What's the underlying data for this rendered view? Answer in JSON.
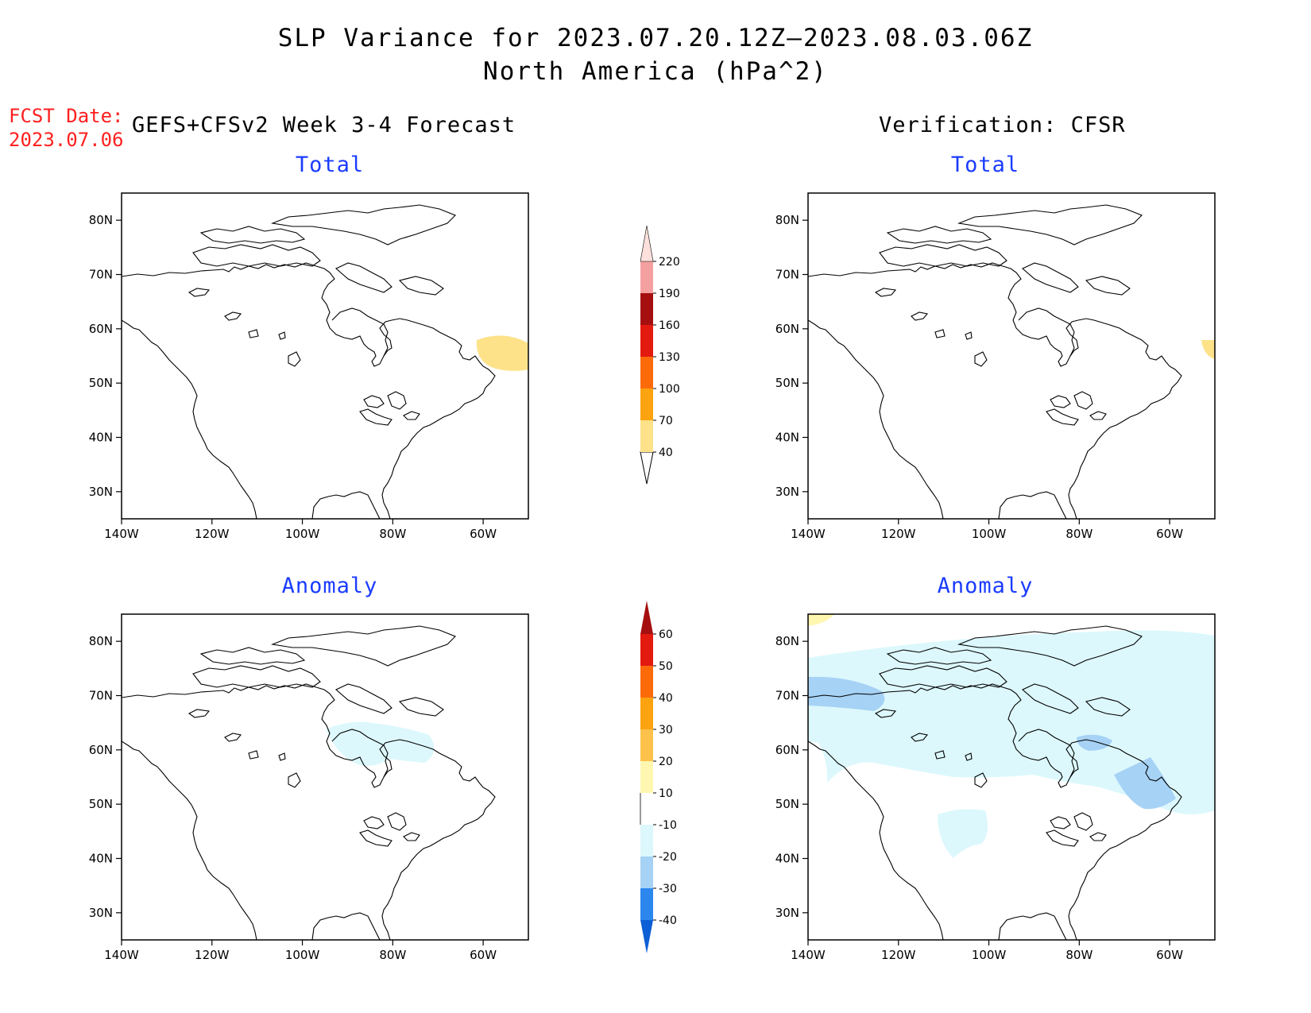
{
  "header": {
    "title_line1": "SLP Variance for 2023.07.20.12Z—2023.08.03.06Z",
    "title_line2": "North America (hPa^2)",
    "fcst_label": "FCST Date:",
    "fcst_date": "2023.07.06",
    "left_subtitle": "GEFS+CFSv2 Week 3-4 Forecast",
    "right_subtitle": "Verification: CFSR"
  },
  "panels": {
    "fcst_total": {
      "title": "Total"
    },
    "verif_total": {
      "title": "Total"
    },
    "fcst_anom": {
      "title": "Anomaly"
    },
    "verif_anom": {
      "title": "Anomaly"
    }
  },
  "axes": {
    "lat_ticks": [
      "80N",
      "70N",
      "60N",
      "50N",
      "40N",
      "30N"
    ],
    "lon_ticks": [
      "140W",
      "120W",
      "100W",
      "80W",
      "60W"
    ],
    "lat_range": [
      25,
      85
    ],
    "lon_range": [
      -140,
      -50
    ]
  },
  "colorbars": {
    "total": {
      "levels": [
        "40",
        "70",
        "100",
        "130",
        "160",
        "190",
        "220"
      ],
      "colors": [
        "#fde28a",
        "#fda30f",
        "#fd6a0a",
        "#e31a10",
        "#a50f0f",
        "#f5a0a0",
        "#fde0dc"
      ]
    },
    "anomaly": {
      "levels": [
        "-40",
        "-30",
        "-20",
        "-10",
        "10",
        "20",
        "30",
        "40",
        "50",
        "60"
      ],
      "colors": [
        "#0d5fd6",
        "#2b86ee",
        "#a6d2f5",
        "#dcf8fc",
        "#ffffff",
        "#fff7b0",
        "#fdc24b",
        "#fda30f",
        "#fd6a0a",
        "#e31a10",
        "#a50f0f"
      ]
    }
  }
}
